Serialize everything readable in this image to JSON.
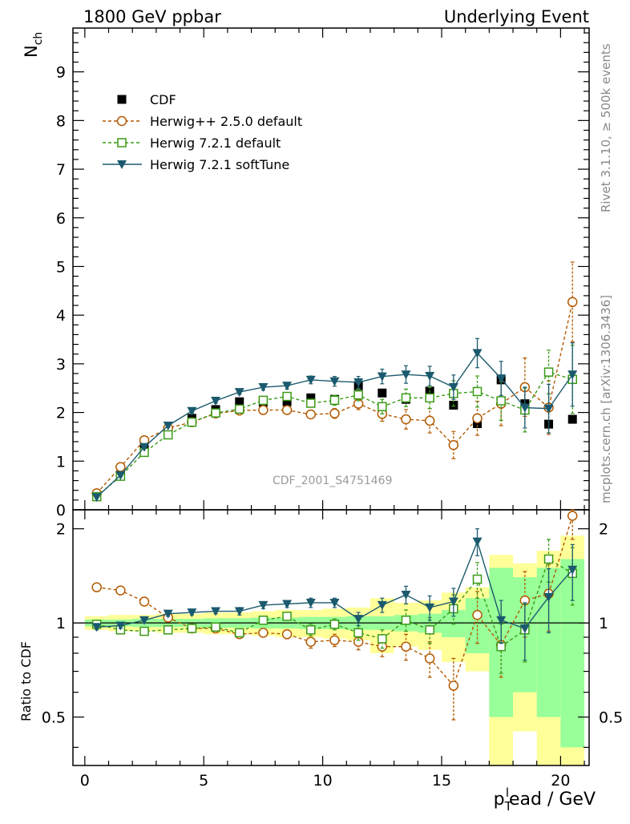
{
  "header": {
    "left_title": "1800 GeV ppbar",
    "right_title": "Underlying Event"
  },
  "side_text": {
    "rivet": "Rivet 3.1.10, ≥ 500k events",
    "mcplots": "mcplots.cern.ch [arXiv:1306.3436]"
  },
  "watermark": "CDF_2001_S4751469",
  "chart_data": [
    {
      "type": "scatter",
      "panel": "main",
      "ylabel": "N_ch",
      "ylim": [
        0,
        9.9
      ],
      "xlim": [
        -0.5,
        21.2
      ],
      "yticks": [
        0,
        1,
        2,
        3,
        4,
        5,
        6,
        7,
        8,
        9
      ],
      "xticks": [
        0,
        5,
        10,
        15,
        20
      ],
      "legend_position": "top-left",
      "x": [
        0.5,
        1.5,
        2.5,
        3.5,
        4.5,
        5.5,
        6.5,
        7.5,
        8.5,
        9.5,
        10.5,
        11.5,
        12.5,
        13.5,
        14.5,
        15.5,
        16.5,
        17.5,
        18.5,
        19.5,
        20.5
      ],
      "series": [
        {
          "name": "CDF",
          "style": "data",
          "color": "#000000",
          "marker": "square-filled",
          "values": [
            0.27,
            0.72,
            1.25,
            1.62,
            1.88,
            2.06,
            2.22,
            2.21,
            2.22,
            2.3,
            2.27,
            2.55,
            2.4,
            2.27,
            2.44,
            2.15,
            1.77,
            2.67,
            2.18,
            1.76,
            1.86
          ]
        },
        {
          "name": "Herwig++ 2.5.0 default",
          "color": "#b35900",
          "marker": "circle-open",
          "dashed": true,
          "values": [
            0.34,
            0.88,
            1.43,
            1.68,
            1.8,
            1.98,
            2.04,
            2.05,
            2.05,
            1.96,
            1.98,
            2.18,
            1.97,
            1.86,
            1.83,
            1.33,
            1.88,
            2.18,
            2.52,
            2.1,
            4.27
          ],
          "errors": [
            0.02,
            0.03,
            0.03,
            0.04,
            0.04,
            0.05,
            0.05,
            0.06,
            0.06,
            0.08,
            0.1,
            0.12,
            0.15,
            0.2,
            0.25,
            0.28,
            0.35,
            0.45,
            0.6,
            0.55,
            0.82
          ]
        },
        {
          "name": "Herwig 7.2.1 default",
          "color": "#3a9a17",
          "marker": "square-open",
          "dashed": true,
          "values": [
            0.27,
            0.69,
            1.18,
            1.54,
            1.8,
            1.99,
            2.07,
            2.25,
            2.33,
            2.19,
            2.25,
            2.36,
            2.12,
            2.3,
            2.3,
            2.39,
            2.43,
            2.24,
            2.05,
            2.83,
            2.68
          ],
          "errors": [
            0.02,
            0.03,
            0.03,
            0.04,
            0.04,
            0.05,
            0.05,
            0.06,
            0.07,
            0.08,
            0.1,
            0.12,
            0.15,
            0.18,
            0.22,
            0.26,
            0.32,
            0.4,
            0.45,
            0.45,
            0.7
          ]
        },
        {
          "name": "Herwig 7.2.1 softTune",
          "color": "#1b5a6e",
          "marker": "triangle-down-filled",
          "dashed": false,
          "values": [
            0.26,
            0.71,
            1.29,
            1.73,
            2.03,
            2.24,
            2.42,
            2.52,
            2.55,
            2.67,
            2.64,
            2.62,
            2.74,
            2.78,
            2.75,
            2.52,
            3.22,
            2.7,
            2.1,
            2.08,
            2.78
          ],
          "errors": [
            0.02,
            0.03,
            0.03,
            0.04,
            0.04,
            0.05,
            0.05,
            0.06,
            0.07,
            0.08,
            0.1,
            0.12,
            0.15,
            0.18,
            0.2,
            0.25,
            0.3,
            0.35,
            0.42,
            0.5,
            0.65
          ]
        }
      ]
    },
    {
      "type": "scatter",
      "panel": "ratio",
      "ylabel": "Ratio to CDF",
      "xlabel": "p_T^lead / GeV",
      "ylim": [
        0.35,
        2.3
      ],
      "yticks": [
        0.5,
        1,
        2
      ],
      "xlim": [
        -0.5,
        21.2
      ],
      "xticks": [
        0,
        5,
        10,
        15,
        20
      ],
      "x": [
        0.5,
        1.5,
        2.5,
        3.5,
        4.5,
        5.5,
        6.5,
        7.5,
        8.5,
        9.5,
        10.5,
        11.5,
        12.5,
        13.5,
        14.5,
        15.5,
        16.5,
        17.5,
        18.5,
        19.5,
        20.5
      ],
      "band_stat": [
        0.025,
        0.025,
        0.03,
        0.03,
        0.03,
        0.035,
        0.035,
        0.04,
        0.04,
        0.045,
        0.045,
        0.05,
        0.05,
        0.06,
        0.07,
        0.1,
        0.2,
        0.5,
        0.4,
        0.5,
        0.6
      ],
      "band_total": [
        0.05,
        0.06,
        0.06,
        0.07,
        0.07,
        0.08,
        0.08,
        0.09,
        0.1,
        0.1,
        0.11,
        0.12,
        0.2,
        0.16,
        0.18,
        0.25,
        0.3,
        0.65,
        0.55,
        0.7,
        0.9
      ],
      "series": [
        {
          "name": "Herwig++ 2.5.0 default",
          "color": "#b35900",
          "marker": "circle-open",
          "dashed": true,
          "values": [
            1.3,
            1.27,
            1.17,
            1.04,
            0.96,
            0.96,
            0.92,
            0.93,
            0.92,
            0.87,
            0.88,
            0.87,
            0.84,
            0.84,
            0.77,
            0.63,
            1.06,
            0.85,
            1.18,
            1.24,
            2.2
          ],
          "errors": [
            0.02,
            0.02,
            0.02,
            0.02,
            0.02,
            0.02,
            0.02,
            0.02,
            0.03,
            0.04,
            0.04,
            0.05,
            0.06,
            0.08,
            0.1,
            0.14,
            0.2,
            0.18,
            0.28,
            0.3,
            0.35
          ]
        },
        {
          "name": "Herwig 7.2.1 default",
          "color": "#3a9a17",
          "marker": "square-open",
          "dashed": true,
          "values": [
            0.99,
            0.95,
            0.94,
            0.95,
            0.96,
            0.97,
            0.93,
            1.02,
            1.05,
            0.95,
            0.99,
            0.93,
            0.89,
            1.02,
            0.95,
            1.11,
            1.38,
            0.84,
            0.95,
            1.6,
            1.44
          ],
          "errors": [
            0.02,
            0.02,
            0.02,
            0.02,
            0.02,
            0.02,
            0.02,
            0.03,
            0.03,
            0.04,
            0.04,
            0.05,
            0.06,
            0.08,
            0.09,
            0.12,
            0.18,
            0.15,
            0.2,
            0.25,
            0.3
          ]
        },
        {
          "name": "Herwig 7.2.1 softTune",
          "color": "#1b5a6e",
          "marker": "triangle-down-filled",
          "dashed": false,
          "values": [
            0.97,
            0.98,
            1.02,
            1.07,
            1.08,
            1.09,
            1.09,
            1.14,
            1.15,
            1.16,
            1.16,
            1.03,
            1.14,
            1.23,
            1.12,
            1.17,
            1.82,
            1.02,
            0.96,
            1.21,
            1.48
          ],
          "errors": [
            0.02,
            0.02,
            0.02,
            0.02,
            0.02,
            0.02,
            0.03,
            0.03,
            0.03,
            0.04,
            0.04,
            0.05,
            0.06,
            0.08,
            0.1,
            0.12,
            0.18,
            0.16,
            0.2,
            0.28,
            0.3
          ]
        }
      ]
    }
  ]
}
